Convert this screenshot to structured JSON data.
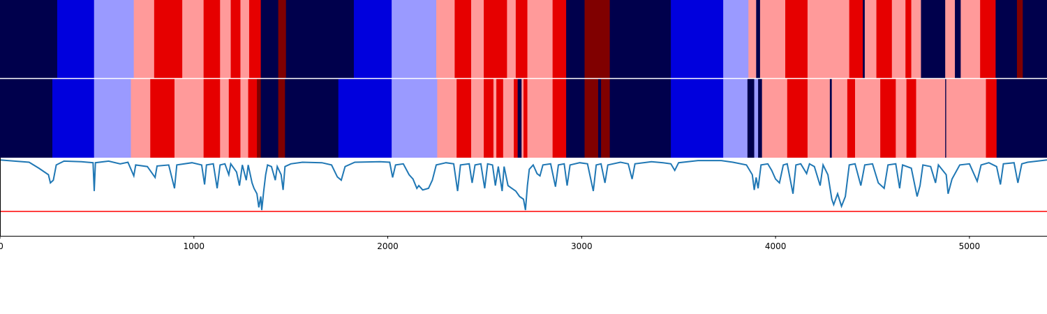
{
  "chart_data": {
    "type": "composite",
    "x_range": [
      0,
      5400
    ],
    "x_ticks": [
      0,
      1000,
      2000,
      3000,
      4000,
      5000
    ],
    "x_tick_labels": [
      "0",
      "1000",
      "2000",
      "3000",
      "4000",
      "5000"
    ],
    "palette": {
      "0": "#00004c",
      "1": "#0000dd",
      "2": "#9a9aff",
      "3": "#ff9a9a",
      "4": "#e60000",
      "5": "#800000"
    },
    "strip_top": [
      [
        0,
        295,
        0
      ],
      [
        295,
        485,
        1
      ],
      [
        485,
        690,
        2
      ],
      [
        690,
        795,
        3
      ],
      [
        795,
        940,
        4
      ],
      [
        940,
        1050,
        3
      ],
      [
        1050,
        1135,
        4
      ],
      [
        1135,
        1190,
        3
      ],
      [
        1190,
        1240,
        4
      ],
      [
        1240,
        1285,
        3
      ],
      [
        1285,
        1345,
        4
      ],
      [
        1345,
        1435,
        0
      ],
      [
        1435,
        1475,
        5
      ],
      [
        1475,
        1825,
        0
      ],
      [
        1825,
        2020,
        1
      ],
      [
        2020,
        2250,
        2
      ],
      [
        2250,
        2345,
        3
      ],
      [
        2345,
        2430,
        4
      ],
      [
        2430,
        2495,
        3
      ],
      [
        2495,
        2615,
        4
      ],
      [
        2615,
        2660,
        3
      ],
      [
        2660,
        2720,
        4
      ],
      [
        2720,
        2850,
        3
      ],
      [
        2850,
        2920,
        4
      ],
      [
        2920,
        3015,
        0
      ],
      [
        3015,
        3145,
        5
      ],
      [
        3145,
        3460,
        0
      ],
      [
        3460,
        3730,
        1
      ],
      [
        3730,
        3860,
        2
      ],
      [
        3860,
        3900,
        3
      ],
      [
        3900,
        3920,
        0
      ],
      [
        3920,
        4050,
        3
      ],
      [
        4050,
        4165,
        4
      ],
      [
        4165,
        4380,
        3
      ],
      [
        4380,
        4450,
        4
      ],
      [
        4450,
        4460,
        0
      ],
      [
        4460,
        4520,
        3
      ],
      [
        4520,
        4600,
        4
      ],
      [
        4600,
        4670,
        3
      ],
      [
        4670,
        4700,
        4
      ],
      [
        4700,
        4750,
        3
      ],
      [
        4750,
        4875,
        0
      ],
      [
        4875,
        4925,
        3
      ],
      [
        4925,
        4955,
        0
      ],
      [
        4955,
        5055,
        3
      ],
      [
        5055,
        5135,
        4
      ],
      [
        5135,
        5245,
        0
      ],
      [
        5245,
        5275,
        5
      ],
      [
        5275,
        5400,
        0
      ]
    ],
    "strip_bottom": [
      [
        0,
        270,
        0
      ],
      [
        270,
        485,
        1
      ],
      [
        485,
        675,
        2
      ],
      [
        675,
        775,
        3
      ],
      [
        775,
        900,
        4
      ],
      [
        900,
        1050,
        3
      ],
      [
        1050,
        1135,
        4
      ],
      [
        1135,
        1180,
        3
      ],
      [
        1180,
        1240,
        4
      ],
      [
        1240,
        1280,
        3
      ],
      [
        1280,
        1325,
        4
      ],
      [
        1325,
        1345,
        5
      ],
      [
        1345,
        1435,
        0
      ],
      [
        1435,
        1470,
        5
      ],
      [
        1470,
        1745,
        0
      ],
      [
        1745,
        2020,
        1
      ],
      [
        2020,
        2255,
        2
      ],
      [
        2255,
        2355,
        3
      ],
      [
        2355,
        2430,
        4
      ],
      [
        2430,
        2495,
        3
      ],
      [
        2495,
        2545,
        4
      ],
      [
        2545,
        2560,
        3
      ],
      [
        2560,
        2595,
        4
      ],
      [
        2595,
        2650,
        3
      ],
      [
        2650,
        2670,
        4
      ],
      [
        2670,
        2690,
        0
      ],
      [
        2690,
        2700,
        3
      ],
      [
        2700,
        2720,
        4
      ],
      [
        2720,
        2850,
        3
      ],
      [
        2850,
        2920,
        4
      ],
      [
        2920,
        3015,
        0
      ],
      [
        3015,
        3085,
        5
      ],
      [
        3085,
        3100,
        0
      ],
      [
        3100,
        3145,
        5
      ],
      [
        3145,
        3460,
        0
      ],
      [
        3460,
        3730,
        1
      ],
      [
        3730,
        3855,
        2
      ],
      [
        3855,
        3890,
        0
      ],
      [
        3890,
        3910,
        2
      ],
      [
        3910,
        3930,
        0
      ],
      [
        3930,
        4060,
        3
      ],
      [
        4060,
        4165,
        4
      ],
      [
        4165,
        4280,
        3
      ],
      [
        4280,
        4290,
        0
      ],
      [
        4290,
        4370,
        3
      ],
      [
        4370,
        4410,
        4
      ],
      [
        4410,
        4540,
        3
      ],
      [
        4540,
        4620,
        4
      ],
      [
        4620,
        4675,
        3
      ],
      [
        4675,
        4725,
        4
      ],
      [
        4725,
        4875,
        3
      ],
      [
        4875,
        4880,
        0
      ],
      [
        4880,
        5085,
        3
      ],
      [
        5085,
        5140,
        4
      ],
      [
        5140,
        5400,
        0
      ]
    ],
    "line": {
      "color": "#1f77b4",
      "y_range": [
        0,
        1
      ],
      "baseline": 0.97,
      "points": [
        [
          0,
          0.97
        ],
        [
          150,
          0.93
        ],
        [
          200,
          0.82
        ],
        [
          250,
          0.7
        ],
        [
          260,
          0.55
        ],
        [
          275,
          0.6
        ],
        [
          290,
          0.88
        ],
        [
          330,
          0.95
        ],
        [
          420,
          0.94
        ],
        [
          480,
          0.92
        ],
        [
          486,
          0.4
        ],
        [
          492,
          0.92
        ],
        [
          560,
          0.95
        ],
        [
          620,
          0.9
        ],
        [
          660,
          0.93
        ],
        [
          690,
          0.68
        ],
        [
          700,
          0.88
        ],
        [
          760,
          0.85
        ],
        [
          800,
          0.65
        ],
        [
          810,
          0.86
        ],
        [
          870,
          0.88
        ],
        [
          900,
          0.45
        ],
        [
          912,
          0.88
        ],
        [
          990,
          0.92
        ],
        [
          1040,
          0.88
        ],
        [
          1055,
          0.52
        ],
        [
          1065,
          0.88
        ],
        [
          1100,
          0.9
        ],
        [
          1120,
          0.45
        ],
        [
          1135,
          0.88
        ],
        [
          1160,
          0.9
        ],
        [
          1180,
          0.7
        ],
        [
          1190,
          0.9
        ],
        [
          1220,
          0.75
        ],
        [
          1235,
          0.5
        ],
        [
          1250,
          0.88
        ],
        [
          1270,
          0.6
        ],
        [
          1280,
          0.88
        ],
        [
          1300,
          0.55
        ],
        [
          1310,
          0.45
        ],
        [
          1325,
          0.35
        ],
        [
          1335,
          0.1
        ],
        [
          1345,
          0.3
        ],
        [
          1350,
          0.05
        ],
        [
          1360,
          0.4
        ],
        [
          1370,
          0.7
        ],
        [
          1380,
          0.88
        ],
        [
          1400,
          0.85
        ],
        [
          1420,
          0.6
        ],
        [
          1430,
          0.85
        ],
        [
          1450,
          0.7
        ],
        [
          1460,
          0.42
        ],
        [
          1470,
          0.85
        ],
        [
          1500,
          0.9
        ],
        [
          1560,
          0.93
        ],
        [
          1660,
          0.92
        ],
        [
          1710,
          0.88
        ],
        [
          1740,
          0.66
        ],
        [
          1760,
          0.6
        ],
        [
          1780,
          0.85
        ],
        [
          1830,
          0.93
        ],
        [
          1960,
          0.94
        ],
        [
          2010,
          0.93
        ],
        [
          2025,
          0.65
        ],
        [
          2040,
          0.88
        ],
        [
          2080,
          0.9
        ],
        [
          2110,
          0.7
        ],
        [
          2130,
          0.62
        ],
        [
          2150,
          0.45
        ],
        [
          2160,
          0.5
        ],
        [
          2180,
          0.42
        ],
        [
          2210,
          0.45
        ],
        [
          2230,
          0.6
        ],
        [
          2250,
          0.88
        ],
        [
          2300,
          0.92
        ],
        [
          2340,
          0.9
        ],
        [
          2360,
          0.4
        ],
        [
          2375,
          0.88
        ],
        [
          2420,
          0.9
        ],
        [
          2435,
          0.55
        ],
        [
          2450,
          0.88
        ],
        [
          2480,
          0.9
        ],
        [
          2500,
          0.45
        ],
        [
          2515,
          0.9
        ],
        [
          2540,
          0.88
        ],
        [
          2555,
          0.5
        ],
        [
          2570,
          0.85
        ],
        [
          2590,
          0.4
        ],
        [
          2600,
          0.85
        ],
        [
          2620,
          0.5
        ],
        [
          2640,
          0.45
        ],
        [
          2660,
          0.4
        ],
        [
          2680,
          0.3
        ],
        [
          2700,
          0.25
        ],
        [
          2710,
          0.05
        ],
        [
          2720,
          0.5
        ],
        [
          2730,
          0.8
        ],
        [
          2750,
          0.88
        ],
        [
          2770,
          0.72
        ],
        [
          2785,
          0.68
        ],
        [
          2800,
          0.88
        ],
        [
          2840,
          0.9
        ],
        [
          2865,
          0.48
        ],
        [
          2880,
          0.88
        ],
        [
          2910,
          0.9
        ],
        [
          2925,
          0.5
        ],
        [
          2940,
          0.88
        ],
        [
          2990,
          0.92
        ],
        [
          3030,
          0.9
        ],
        [
          3060,
          0.4
        ],
        [
          3075,
          0.88
        ],
        [
          3100,
          0.9
        ],
        [
          3120,
          0.55
        ],
        [
          3135,
          0.88
        ],
        [
          3200,
          0.93
        ],
        [
          3240,
          0.9
        ],
        [
          3260,
          0.62
        ],
        [
          3275,
          0.9
        ],
        [
          3360,
          0.94
        ],
        [
          3420,
          0.92
        ],
        [
          3460,
          0.9
        ],
        [
          3480,
          0.78
        ],
        [
          3500,
          0.92
        ],
        [
          3600,
          0.96
        ],
        [
          3720,
          0.96
        ],
        [
          3780,
          0.93
        ],
        [
          3850,
          0.88
        ],
        [
          3880,
          0.7
        ],
        [
          3890,
          0.42
        ],
        [
          3900,
          0.65
        ],
        [
          3910,
          0.45
        ],
        [
          3925,
          0.88
        ],
        [
          3960,
          0.9
        ],
        [
          3980,
          0.78
        ],
        [
          4000,
          0.62
        ],
        [
          4020,
          0.55
        ],
        [
          4040,
          0.88
        ],
        [
          4060,
          0.9
        ],
        [
          4090,
          0.35
        ],
        [
          4105,
          0.88
        ],
        [
          4130,
          0.9
        ],
        [
          4160,
          0.72
        ],
        [
          4175,
          0.9
        ],
        [
          4200,
          0.85
        ],
        [
          4230,
          0.5
        ],
        [
          4245,
          0.88
        ],
        [
          4270,
          0.7
        ],
        [
          4290,
          0.25
        ],
        [
          4300,
          0.15
        ],
        [
          4320,
          0.35
        ],
        [
          4340,
          0.12
        ],
        [
          4360,
          0.3
        ],
        [
          4380,
          0.88
        ],
        [
          4410,
          0.9
        ],
        [
          4440,
          0.5
        ],
        [
          4460,
          0.88
        ],
        [
          4500,
          0.9
        ],
        [
          4530,
          0.55
        ],
        [
          4560,
          0.45
        ],
        [
          4580,
          0.88
        ],
        [
          4620,
          0.9
        ],
        [
          4640,
          0.45
        ],
        [
          4655,
          0.88
        ],
        [
          4700,
          0.82
        ],
        [
          4730,
          0.3
        ],
        [
          4745,
          0.5
        ],
        [
          4760,
          0.88
        ],
        [
          4800,
          0.85
        ],
        [
          4825,
          0.55
        ],
        [
          4840,
          0.88
        ],
        [
          4880,
          0.7
        ],
        [
          4890,
          0.35
        ],
        [
          4910,
          0.62
        ],
        [
          4950,
          0.88
        ],
        [
          5000,
          0.9
        ],
        [
          5040,
          0.58
        ],
        [
          5060,
          0.88
        ],
        [
          5100,
          0.92
        ],
        [
          5140,
          0.85
        ],
        [
          5160,
          0.52
        ],
        [
          5175,
          0.9
        ],
        [
          5230,
          0.92
        ],
        [
          5250,
          0.55
        ],
        [
          5270,
          0.9
        ],
        [
          5300,
          0.93
        ],
        [
          5400,
          0.97
        ]
      ]
    },
    "threshold": {
      "color": "#ff0000",
      "y": 0
    }
  }
}
